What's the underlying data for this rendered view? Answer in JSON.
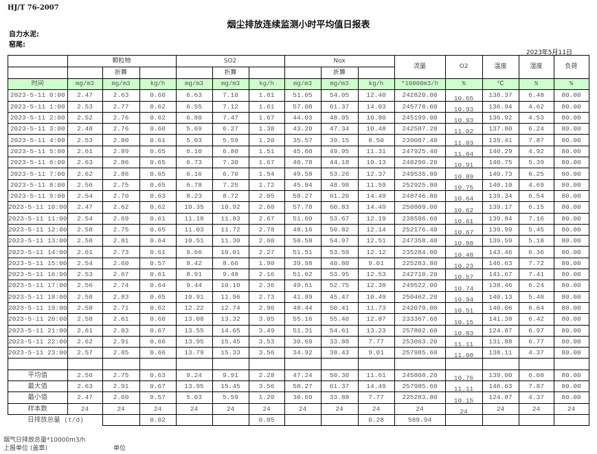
{
  "header": {
    "standard": "HJ/T  76-2007",
    "title": "烟尘排放连续监测小时平均值日报表",
    "company": "自力水泥:",
    "kiln": "窑尾:",
    "date": "2023年5月11日"
  },
  "columns": {
    "particulate": "颗粒物",
    "so2": "SO2",
    "nox": "Nox",
    "converted": "折算",
    "flow": "流量",
    "o2": "O2",
    "temp": "温度",
    "humidity": "湿度",
    "load": "负荷"
  },
  "units": [
    "时间",
    "mg/m3",
    "mg/m3",
    "kg/h",
    "mg/m3",
    "mg/m3",
    "kg/h",
    "mg/m3",
    "mg/m3",
    "kg/h",
    "*10000m3/h",
    "%",
    "℃",
    "%",
    "%"
  ],
  "rows": [
    [
      "2023-5-11 0:00",
      "2.47",
      "2.63",
      "0.60",
      "6.63",
      "7.10",
      "1.61",
      "51.05",
      "54.05",
      "12.40",
      "242820.00",
      "10.65",
      "138.37",
      "6.48",
      "80.00"
    ],
    [
      "2023-5-11 1:00",
      "2.53",
      "2.77",
      "0.62",
      "6.55",
      "7.12",
      "1.61",
      "57.08",
      "61.37",
      "14.03",
      "245778.60",
      "10.93",
      "136.94",
      "4.62",
      "80.00"
    ],
    [
      "2023-5-11 2:00",
      "2.52",
      "2.76",
      "0.62",
      "6.80",
      "7.47",
      "1.67",
      "44.03",
      "48.05",
      "10.80",
      "245199.00",
      "10.93",
      "136.92",
      "4.53",
      "80.00"
    ],
    [
      "2023-5-11 3:00",
      "2.48",
      "2.76",
      "0.60",
      "5.69",
      "6.27",
      "1.38",
      "43.20",
      "47.34",
      "10.48",
      "242587.20",
      "11.02",
      "137.80",
      "6.24",
      "80.00"
    ],
    [
      "2023-5-11 4:00",
      "2.53",
      "2.80",
      "0.61",
      "5.03",
      "5.59",
      "1.20",
      "35.57",
      "39.15",
      "8.50",
      "239087.40",
      "11.03",
      "139.41",
      "7.87",
      "80.00"
    ],
    [
      "2023-5-11 5:00",
      "2.61",
      "2.89",
      "0.65",
      "6.10",
      "6.80",
      "1.51",
      "45.60",
      "49.95",
      "11.31",
      "247925.40",
      "11.04",
      "140.29",
      "4.92",
      "80.00"
    ],
    [
      "2023-5-11 6:00",
      "2.63",
      "2.86",
      "0.65",
      "6.73",
      "7.30",
      "1.67",
      "40.78",
      "44.18",
      "10.13",
      "248290.20",
      "10.91",
      "140.75",
      "5.39",
      "80.00"
    ],
    [
      "2023-5-11 7:00",
      "2.62",
      "2.86",
      "0.65",
      "6.16",
      "6.70",
      "1.54",
      "49.58",
      "53.26",
      "12.37",
      "249535.80",
      "10.89",
      "140.73",
      "6.25",
      "80.00"
    ],
    [
      "2023-5-11 8:00",
      "2.56",
      "2.75",
      "0.65",
      "6.78",
      "7.25",
      "1.72",
      "45.84",
      "48.98",
      "11.59",
      "252925.80",
      "10.75",
      "140.10",
      "4.69",
      "80.00"
    ],
    [
      "2023-5-11 9:00",
      "2.54",
      "2.70",
      "0.63",
      "8.23",
      "8.72",
      "2.05",
      "58.27",
      "61.20",
      "14.49",
      "248746.80",
      "10.64",
      "139.34",
      "6.54",
      "80.00"
    ],
    [
      "2023-5-11 10:00",
      "2.47",
      "2.62",
      "0.62",
      "10.35",
      "10.92",
      "2.60",
      "57.78",
      "60.83",
      "14.49",
      "250809.00",
      "10.62",
      "139.17",
      "6.15",
      "80.00"
    ],
    [
      "2023-5-11 11:00",
      "2.54",
      "2.69",
      "0.61",
      "11.18",
      "11.83",
      "2.67",
      "51.09",
      "53.67",
      "12.19",
      "238596.60",
      "10.61",
      "139.84",
      "7.16",
      "80.00"
    ],
    [
      "2023-5-11 12:00",
      "2.58",
      "2.75",
      "0.65",
      "11.03",
      "11.72",
      "2.78",
      "48.16",
      "50.82",
      "12.14",
      "252176.40",
      "10.67",
      "139.99",
      "5.45",
      "80.00"
    ],
    [
      "2023-5-11 13:00",
      "2.58",
      "2.81",
      "0.64",
      "10.51",
      "11.30",
      "2.60",
      "50.58",
      "54.97",
      "12.51",
      "247358.40",
      "10.88",
      "139.59",
      "5.18",
      "80.00"
    ],
    [
      "2023-5-11 14:00",
      "2.61",
      "2.73",
      "0.61",
      "9.66",
      "10.01",
      "2.27",
      "51.51",
      "53.59",
      "12.12",
      "235284.00",
      "10.48",
      "143.46",
      "6.36",
      "80.00"
    ],
    [
      "2023-5-11 15:00",
      "2.54",
      "2.60",
      "0.57",
      "8.42",
      "8.66",
      "1.90",
      "39.98",
      "40.80",
      "9.01",
      "225283.80",
      "10.23",
      "146.63",
      "7.72",
      "80.00"
    ],
    [
      "2023-5-11 16:00",
      "2.53",
      "2.67",
      "0.61",
      "8.91",
      "9.48",
      "2.16",
      "51.62",
      "53.95",
      "12.53",
      "242710.20",
      "10.57",
      "141.67",
      "7.41",
      "80.00"
    ],
    [
      "2023-5-11 17:00",
      "2.56",
      "2.74",
      "0.64",
      "9.44",
      "10.10",
      "2.36",
      "49.61",
      "52.75",
      "12.38",
      "249522.00",
      "10.74",
      "138.46",
      "6.24",
      "80.00"
    ],
    [
      "2023-5-11 18:00",
      "2.58",
      "2.83",
      "0.65",
      "10.91",
      "11.96",
      "2.73",
      "41.89",
      "45.47",
      "10.49",
      "250462.20",
      "10.94",
      "140.13",
      "5.48",
      "80.00"
    ],
    [
      "2023-5-11 19:00",
      "2.58",
      "2.71",
      "0.62",
      "12.22",
      "12.74",
      "2.96",
      "48.44",
      "50.41",
      "11.73",
      "242079.00",
      "10.51",
      "140.06",
      "6.64",
      "80.00"
    ],
    [
      "2023-5-11 20:00",
      "2.58",
      "2.61",
      "0.60",
      "13.08",
      "13.32",
      "3.05",
      "55.16",
      "55.40",
      "12.87",
      "233367.60",
      "10.15",
      "141.38",
      "6.42",
      "80.00"
    ],
    [
      "2023-5-11 21:00",
      "2.61",
      "2.83",
      "0.67",
      "13.55",
      "14.65",
      "3.49",
      "51.31",
      "54.61",
      "13.23",
      "257802.60",
      "10.83",
      "124.87",
      "6.97",
      "80.00"
    ],
    [
      "2023-5-11 22:00",
      "2.62",
      "2.91",
      "0.66",
      "13.95",
      "15.45",
      "3.53",
      "30.69",
      "33.88",
      "7.77",
      "253063.20",
      "11.11",
      "131.88",
      "6.77",
      "80.00"
    ],
    [
      "2023-5-11 23:00",
      "2.57",
      "2.85",
      "0.66",
      "13.79",
      "15.33",
      "3.56",
      "34.92",
      "38.43",
      "9.01",
      "257985.60",
      "11.08",
      "138.11",
      "4.37",
      "80.00"
    ]
  ],
  "stats": [
    [
      "平均值",
      "2.56",
      "2.75",
      "0.63",
      "9.24",
      "9.91",
      "2.28",
      "47.24",
      "50.30",
      "11.61",
      "245808.20",
      "10.76",
      "139.00",
      "6.08",
      "80.00"
    ],
    [
      "最大值",
      "2.63",
      "2.91",
      "0.67",
      "13.95",
      "15.45",
      "3.56",
      "58.27",
      "61.37",
      "14.49",
      "257985.60",
      "11.11",
      "146.63",
      "7.87",
      "80.00"
    ],
    [
      "最小值",
      "2.47",
      "2.60",
      "0.57",
      "5.03",
      "5.59",
      "1.20",
      "30.69",
      "33.88",
      "7.77",
      "225283.80",
      "10.15",
      "124.87",
      "4.37",
      "80.00"
    ],
    [
      "样本数",
      "24",
      "24",
      "24",
      "24",
      "24",
      "24",
      "24",
      "24",
      "24",
      "24",
      "24",
      "24",
      "24",
      "24"
    ]
  ],
  "daily_total": [
    "日排放总量 (t/d)",
    "",
    "0.02",
    "",
    "",
    "0.05",
    "",
    "",
    "0.28",
    "589.94",
    "",
    "",
    "",
    ""
  ],
  "footer": {
    "flue_total": "烟气日排放总量*10000m3/h",
    "reporter": "上报单位 (盖章)",
    "unit": "单位"
  }
}
